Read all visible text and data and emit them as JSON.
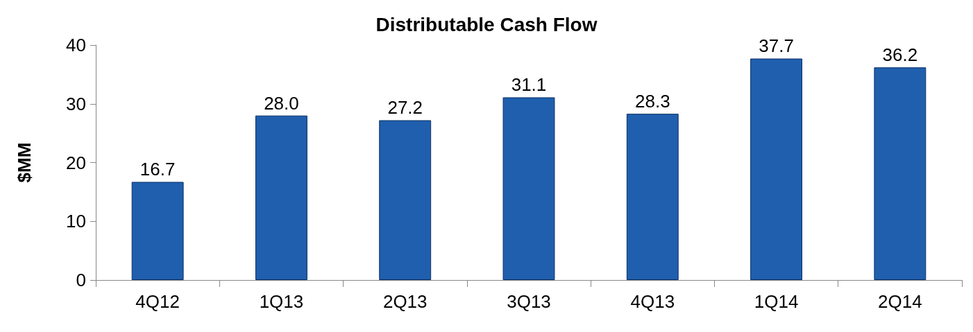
{
  "chart_data": {
    "type": "bar",
    "title": "Distributable Cash Flow",
    "ylabel": "$MM",
    "categories": [
      "4Q12",
      "1Q13",
      "2Q13",
      "3Q13",
      "4Q13",
      "1Q14",
      "2Q14"
    ],
    "values": [
      16.7,
      28.0,
      27.2,
      31.1,
      28.3,
      37.7,
      36.2
    ],
    "value_labels": [
      "16.7",
      "28.0",
      "27.2",
      "31.1",
      "28.3",
      "37.7",
      "36.2"
    ],
    "color": "#1f5fae",
    "ylim": [
      0,
      40
    ],
    "yticks": [
      0,
      10,
      20,
      30,
      40
    ],
    "grid": false
  }
}
